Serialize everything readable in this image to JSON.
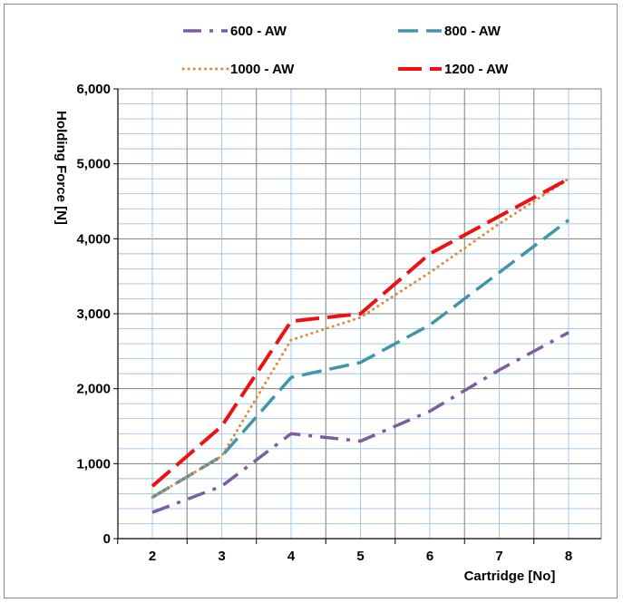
{
  "chart_data": {
    "type": "line",
    "title": "",
    "xlabel": "Cartridge [No]",
    "ylabel": "Holding Force [N]",
    "x": [
      2,
      3,
      4,
      5,
      6,
      7,
      8
    ],
    "x_tick_labels": [
      "2",
      "3",
      "4",
      "5",
      "6",
      "7",
      "8"
    ],
    "y_tick_labels": [
      "0",
      "1,000",
      "2,000",
      "3,000",
      "4,000",
      "5,000",
      "6,000"
    ],
    "ylim": [
      0,
      6000
    ],
    "y_major_step": 1000,
    "y_minor_step": 200,
    "x_minor_divisions": 2,
    "grid": true,
    "legend_position": "top",
    "series": [
      {
        "name": "600 - AW",
        "color": "#7b5da0",
        "dash": "dash-dot",
        "values": [
          350,
          700,
          1400,
          1300,
          1700,
          2250,
          2750
        ]
      },
      {
        "name": "800 - AW",
        "color": "#3f96a8",
        "dash": "long-dash",
        "values": [
          550,
          1100,
          2150,
          2350,
          2850,
          3550,
          4250
        ]
      },
      {
        "name": "1000 - AW",
        "color": "#e0893a",
        "dash": "dotted",
        "values": [
          550,
          1100,
          2650,
          2950,
          3550,
          4200,
          4800
        ]
      },
      {
        "name": "1200 - AW",
        "color": "#ee1111",
        "dash": "long-dash-bold",
        "values": [
          700,
          1500,
          2900,
          3000,
          3800,
          4300,
          4800
        ]
      }
    ]
  }
}
